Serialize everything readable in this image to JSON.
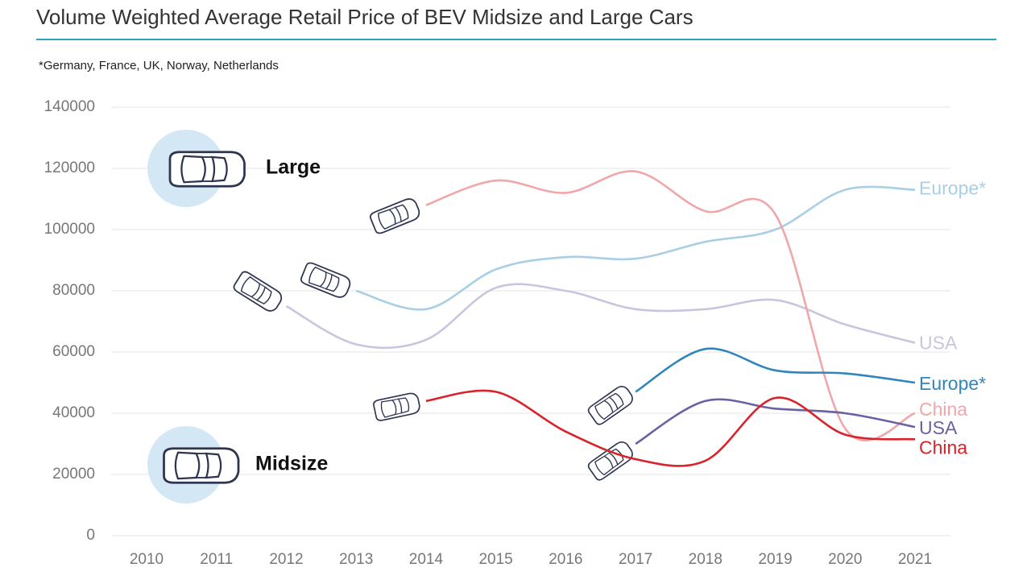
{
  "chart_data": {
    "type": "line",
    "title": "Volume Weighted Average Retail Price of BEV Midsize and Large Cars",
    "subtitle": "*Germany, France, UK, Norway, Netherlands",
    "annotations": [
      "Large",
      "Midsize"
    ],
    "x": [
      2010,
      2011,
      2012,
      2013,
      2014,
      2015,
      2016,
      2017,
      2018,
      2019,
      2020,
      2021
    ],
    "xlim": [
      2010,
      2021
    ],
    "xticks": [
      2010,
      2011,
      2012,
      2013,
      2014,
      2015,
      2016,
      2017,
      2018,
      2019,
      2020,
      2021
    ],
    "ylim": [
      0,
      140000
    ],
    "yticks": [
      0,
      20000,
      40000,
      60000,
      80000,
      100000,
      120000,
      140000
    ],
    "grid": true,
    "series": [
      {
        "name": "Europe*",
        "color": "#a9cfe6",
        "values": [
          null,
          null,
          null,
          80000,
          74000,
          87000,
          91000,
          90500,
          96000,
          100000,
          113000,
          113000
        ]
      },
      {
        "name": "USA",
        "color": "#c9c5de",
        "values": [
          null,
          null,
          75000,
          62500,
          64000,
          81000,
          80000,
          74000,
          74000,
          77000,
          69000,
          63000
        ]
      },
      {
        "name": "China",
        "color": "#f0a7a9",
        "values": [
          null,
          null,
          null,
          null,
          108000,
          116000,
          112000,
          119000,
          106000,
          105000,
          35000,
          40000
        ]
      },
      {
        "name": "Europe*",
        "color": "#2f86bb",
        "values": [
          null,
          null,
          null,
          null,
          null,
          null,
          null,
          47000,
          61000,
          54000,
          53000,
          50000
        ]
      },
      {
        "name": "USA",
        "color": "#6862a3",
        "values": [
          null,
          null,
          null,
          null,
          null,
          null,
          null,
          30000,
          44000,
          41500,
          40000,
          35500
        ]
      },
      {
        "name": "China",
        "color": "#d8232a",
        "values": [
          null,
          null,
          null,
          null,
          44000,
          47000,
          34000,
          25000,
          24500,
          45000,
          33000,
          31500
        ]
      }
    ]
  }
}
